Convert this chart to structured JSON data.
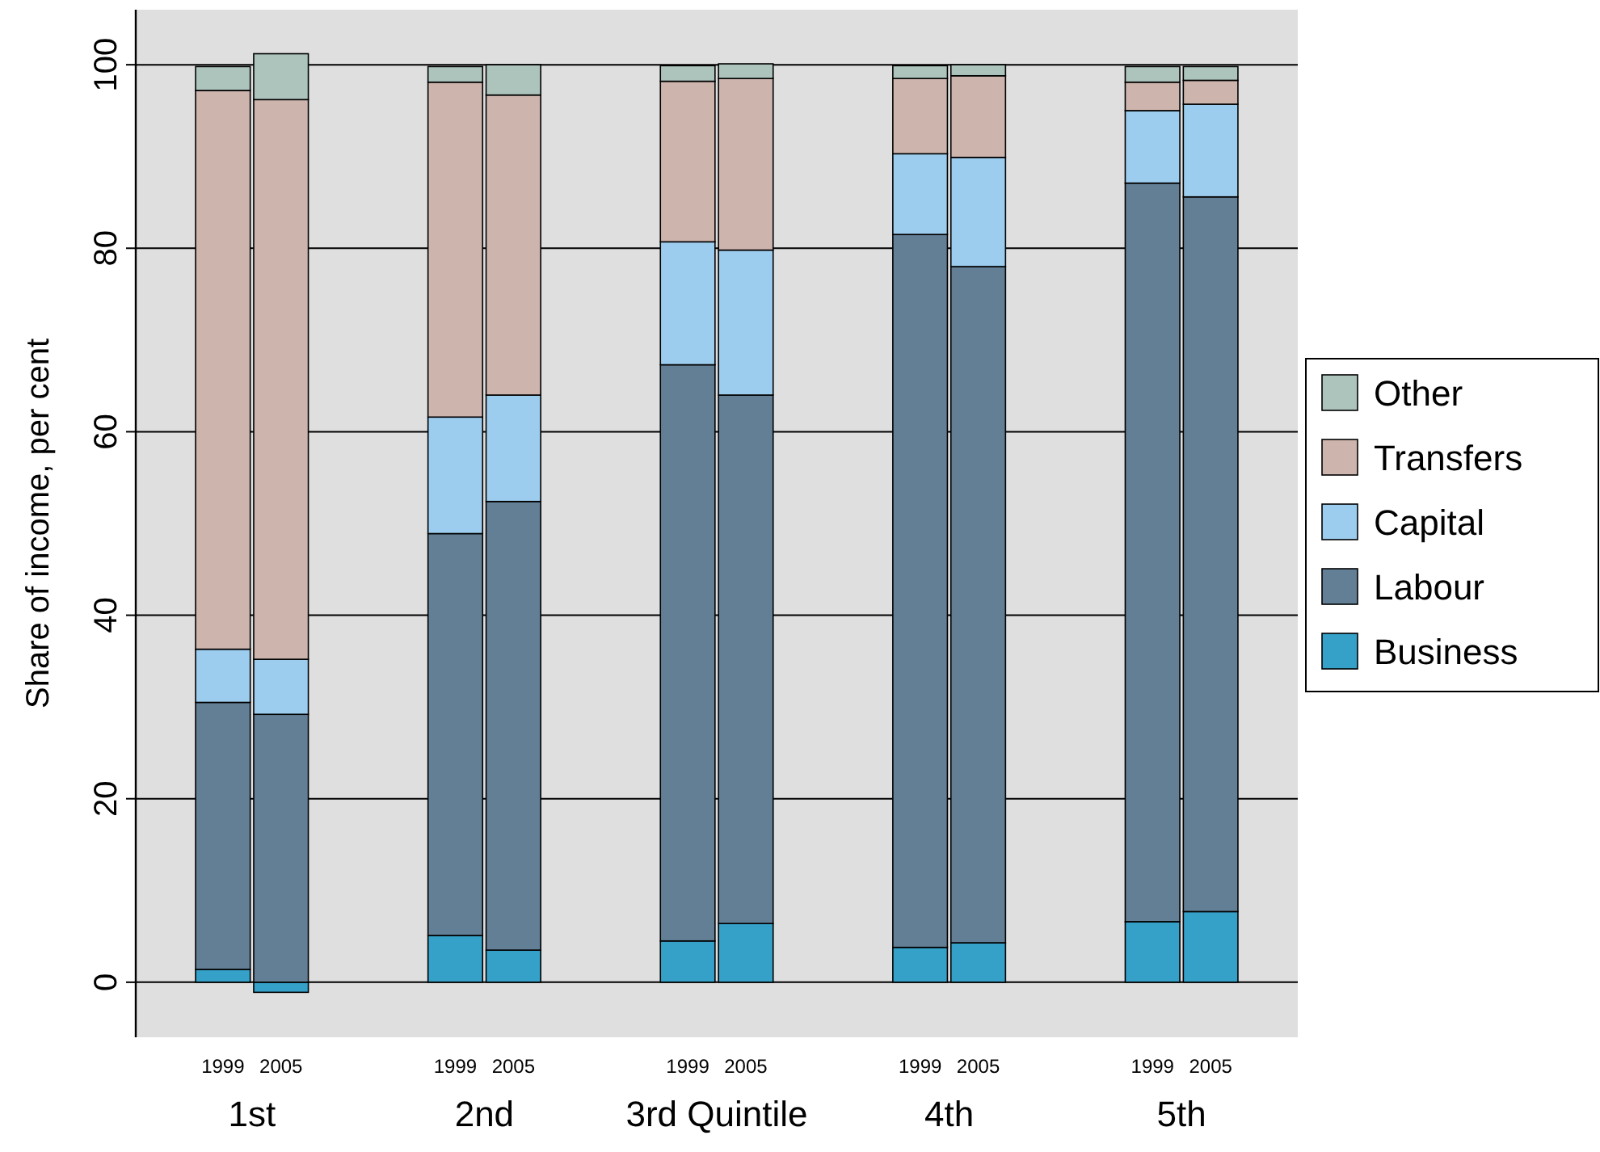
{
  "chart_data": {
    "type": "bar",
    "stacked": true,
    "ylabel": "Share of income, per cent",
    "categories": [
      null,
      "1999",
      "2005",
      null,
      null,
      "1999",
      "2005",
      null,
      null,
      "1999",
      "2005",
      null,
      null,
      "1999",
      "2005",
      null,
      null,
      "1999",
      "2005",
      null
    ],
    "annotations": [
      "1st",
      "2nd",
      "3rd Quintile",
      "4th",
      "5th"
    ],
    "series": [
      {
        "name": "Business",
        "color": "#35a1c9",
        "values": [
          null,
          1.4,
          -1.1,
          null,
          null,
          5.1,
          3.5,
          null,
          null,
          4.5,
          6.4,
          null,
          null,
          3.8,
          4.3,
          null,
          null,
          6.6,
          7.7,
          null
        ]
      },
      {
        "name": "Labour",
        "color": "#627f95",
        "values": [
          null,
          29.1,
          29.2,
          null,
          null,
          43.8,
          48.9,
          null,
          null,
          62.8,
          57.6,
          null,
          null,
          77.7,
          73.7,
          null,
          null,
          80.5,
          77.9,
          null
        ]
      },
      {
        "name": "Capital",
        "color": "#9dcdee",
        "values": [
          null,
          5.8,
          6.0,
          null,
          null,
          12.7,
          11.6,
          null,
          null,
          13.4,
          15.8,
          null,
          null,
          8.8,
          11.9,
          null,
          null,
          7.9,
          10.1,
          null
        ]
      },
      {
        "name": "Transfers",
        "color": "#cdb4ad",
        "values": [
          null,
          60.9,
          61.0,
          null,
          null,
          36.5,
          32.7,
          null,
          null,
          17.5,
          18.7,
          null,
          null,
          8.2,
          8.9,
          null,
          null,
          3.1,
          2.6,
          null
        ]
      },
      {
        "name": "Other",
        "color": "#adc4bd",
        "values": [
          null,
          2.6,
          5.0,
          null,
          null,
          1.7,
          3.3,
          null,
          null,
          1.7,
          1.6,
          null,
          null,
          1.4,
          1.2,
          null,
          null,
          1.7,
          1.5,
          null
        ]
      }
    ],
    "ylim": [
      -6,
      106
    ],
    "yticks": [
      0,
      20,
      40,
      60,
      80,
      100
    ],
    "grid": "y",
    "legend": "right"
  }
}
